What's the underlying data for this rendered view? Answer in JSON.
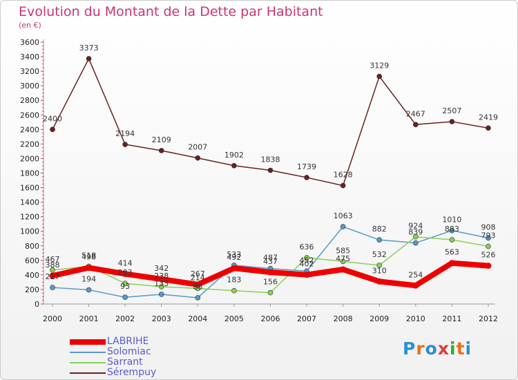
{
  "title": "Evolution du Montant de la Dette par Habitant",
  "subtitle": "(en €)",
  "logo": "Proxiti",
  "logo_colors": [
    "#2a8fd6",
    "#e8701a",
    "#2a8fd6",
    "#e03a3a",
    "#33aa33",
    "#e8701a",
    "#2a8fd6"
  ],
  "chart_data": {
    "type": "line",
    "title": "Evolution du Montant de la Dette par Habitant",
    "subtitle": "(en €)",
    "x": [
      "2000",
      "2001",
      "2002",
      "2003",
      "2004",
      "2005",
      "2006",
      "2007",
      "2008",
      "2009",
      "2010",
      "2011",
      "2012"
    ],
    "ylim": [
      0,
      3600
    ],
    "yticks": [
      0,
      200,
      400,
      600,
      800,
      1000,
      1200,
      1400,
      1600,
      1800,
      2000,
      2200,
      2400,
      2600,
      2800,
      3000,
      3200,
      3400,
      3600
    ],
    "grid": false,
    "legend_position": "bottom-left",
    "series": [
      {
        "name": "LABRIHE",
        "color": "#ee0000",
        "values": [
          388,
          498,
          414,
          342,
          267,
          492,
          437,
          402,
          475,
          310,
          254,
          563,
          526
        ]
      },
      {
        "name": "Solomiac",
        "color": "#5599cc",
        "values": [
          227,
          194,
          93,
          133,
          86,
          533,
          487,
          452,
          1063,
          882,
          839,
          1010,
          908
        ]
      },
      {
        "name": "Sarrant",
        "color": "#88d055",
        "values": [
          467,
          518,
          283,
          238,
          214,
          183,
          156,
          636,
          585,
          532,
          924,
          883,
          793
        ]
      },
      {
        "name": "Sérempuy",
        "color": "#6b1f1f",
        "values": [
          2400,
          3373,
          2194,
          2109,
          2007,
          1902,
          1838,
          1739,
          1628,
          3129,
          2467,
          2507,
          2419
        ]
      }
    ],
    "data_labels": [
      [
        "388",
        "498",
        "414",
        "342",
        "267",
        "492",
        "437",
        "402",
        "475",
        "310",
        "254",
        "563",
        "526"
      ],
      [
        "227",
        "194",
        "93",
        "133",
        "86",
        "533",
        "487",
        "452",
        "1063",
        "882",
        "839",
        "1010",
        "908"
      ],
      [
        "467",
        "518",
        "283",
        "238",
        "214",
        "183",
        "156",
        "636",
        "585",
        "532",
        "924",
        "883",
        "793"
      ],
      [
        "2400",
        "3373",
        "2194",
        "2109",
        "2007",
        "1902",
        "1838",
        "1739",
        "1628",
        "3129",
        "2467",
        "2507",
        "2419"
      ]
    ]
  }
}
